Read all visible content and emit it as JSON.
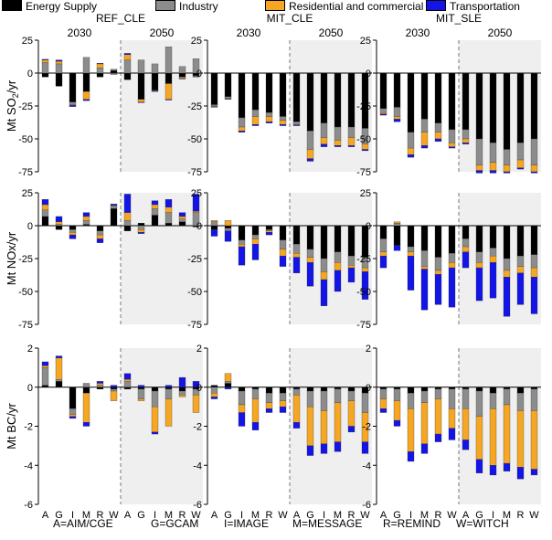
{
  "legend": [
    {
      "label": "Energy Supply",
      "color": "#000000"
    },
    {
      "label": "Industry",
      "color": "#8c8c8c"
    },
    {
      "label": "Residential and commercial",
      "color": "#f5a623"
    },
    {
      "label": "Transportation",
      "color": "#1414e6"
    }
  ],
  "footer": [
    "A=AIM/CGE",
    "G=GCAM",
    "I=IMAGE",
    "M=MESSAGE",
    "R=REMIND",
    "W=WITCH"
  ],
  "chart_data": {
    "type": "bar",
    "stacked": true,
    "panel_titles": [
      "REF_CLE",
      "MIT_CLE",
      "MIT_SLE"
    ],
    "period_labels": [
      "2030",
      "2050"
    ],
    "x_tick_labels": [
      "A",
      "G",
      "I",
      "M",
      "R",
      "W",
      "A",
      "G",
      "I",
      "M",
      "R",
      "W"
    ],
    "sectors": [
      "Energy Supply",
      "Industry",
      "Residential and commercial",
      "Transportation"
    ],
    "colors": [
      "#000000",
      "#8c8c8c",
      "#f5a623",
      "#1414e6"
    ],
    "rows": [
      {
        "ylabel": "Mt SO2/yr",
        "ylim": [
          -75,
          25
        ],
        "yticks": [
          25,
          0,
          -25,
          -50,
          -75
        ],
        "panels": [
          [
            [
              -3,
              8,
              2,
              0.5
            ],
            [
              -10,
              7,
              2,
              1
            ],
            [
              -22,
              -2,
              -0.5,
              -1
            ],
            [
              -14,
              12,
              -6,
              -1
            ],
            [
              -3,
              4,
              3,
              0.5
            ],
            [
              2,
              1,
              -0.5,
              -0.5
            ],
            [
              -5,
              10,
              4,
              1
            ],
            [
              -20,
              10,
              -2,
              -0.5
            ],
            [
              -13,
              7,
              -0.5,
              -0.5
            ],
            [
              -8,
              20,
              -12,
              -0.5
            ],
            [
              -3,
              5,
              -1,
              -0.5
            ],
            [
              -2,
              11,
              -0.5,
              -0.5
            ]
          ],
          [
            [
              -24,
              -1,
              -0.5,
              -0.5
            ],
            [
              -18,
              -1,
              -0.5,
              -0.5
            ],
            [
              -34,
              -7,
              -3,
              -1
            ],
            [
              -28,
              -5,
              -6,
              -1
            ],
            [
              -30,
              -3,
              -4,
              -1
            ],
            [
              -33,
              -3,
              -3,
              -1
            ],
            [
              -37,
              -2,
              -0.5,
              -0.5
            ],
            [
              -44,
              -14,
              -7,
              -2
            ],
            [
              -38,
              -11,
              -5,
              -2
            ],
            [
              -41,
              -10,
              -4,
              -1
            ],
            [
              -41,
              -8,
              -6,
              -1
            ],
            [
              -42,
              -12,
              -4,
              -1
            ]
          ],
          [
            [
              -27,
              -3,
              -1,
              -1
            ],
            [
              -26,
              -7,
              -2,
              -2
            ],
            [
              -45,
              -12,
              -5,
              -2
            ],
            [
              -35,
              -10,
              -10,
              -2
            ],
            [
              -38,
              -7,
              -5,
              -2
            ],
            [
              -43,
              -10,
              -3,
              -1
            ],
            [
              -43,
              -7,
              -3,
              -1
            ],
            [
              -50,
              -20,
              -4,
              -2
            ],
            [
              -53,
              -15,
              -6,
              -2
            ],
            [
              -58,
              -12,
              -5,
              -1
            ],
            [
              -53,
              -13,
              -6,
              -1
            ],
            [
              -50,
              -20,
              -5,
              -1
            ]
          ]
        ]
      },
      {
        "ylabel": "Mt NOx/yr",
        "ylim": [
          -75,
          25
        ],
        "yticks": [
          25,
          0,
          -25,
          -50,
          -75
        ],
        "panels": [
          [
            [
              7,
              5,
              4,
              4
            ],
            [
              -3,
              1,
              2,
              4
            ],
            [
              -3,
              -2,
              -2,
              -3
            ],
            [
              1,
              3,
              3,
              3
            ],
            [
              -4,
              -3,
              -3,
              -3
            ],
            [
              13,
              2,
              0.5,
              1
            ],
            [
              -4,
              4,
              6,
              14
            ],
            [
              2,
              -3,
              -2,
              -1
            ],
            [
              8,
              5,
              3,
              3
            ],
            [
              2,
              8,
              4,
              6
            ],
            [
              3,
              2,
              2,
              3
            ],
            [
              -1,
              10,
              1,
              13
            ]
          ],
          [
            [
              -3,
              3,
              1,
              -5
            ],
            [
              -2,
              -2,
              4,
              -8
            ],
            [
              -11,
              -3,
              -2,
              -14
            ],
            [
              -7,
              -3,
              -4,
              -12
            ],
            [
              -3,
              -1,
              -1,
              -2
            ],
            [
              -11,
              -7,
              -5,
              -8
            ],
            [
              -14,
              -7,
              -3,
              -12
            ],
            [
              -18,
              -6,
              -4,
              -18
            ],
            [
              -25,
              -10,
              -6,
              -20
            ],
            [
              -20,
              -8,
              -6,
              -16
            ],
            [
              -23,
              -7,
              -2,
              -11
            ],
            [
              -24,
              -8,
              -3,
              -21
            ]
          ],
          [
            [
              -10,
              -10,
              -3,
              -9
            ],
            [
              -15,
              2,
              1,
              -4
            ],
            [
              -16,
              -4,
              -3,
              -26
            ],
            [
              -19,
              -12,
              -2,
              -31
            ],
            [
              -24,
              -10,
              -3,
              -23
            ],
            [
              -21,
              -7,
              -4,
              -30
            ],
            [
              -10,
              -6,
              -4,
              -12
            ],
            [
              -20,
              -8,
              -4,
              -25
            ],
            [
              -17,
              -6,
              -5,
              -27
            ],
            [
              -25,
              -9,
              -5,
              -30
            ],
            [
              -23,
              -8,
              -5,
              -24
            ],
            [
              -22,
              -10,
              -7,
              -28
            ]
          ]
        ]
      },
      {
        "ylabel": "Mt BC/yr",
        "ylim": [
          -6,
          2
        ],
        "yticks": [
          2,
          0,
          -2,
          -4,
          -6
        ],
        "panels": [
          [
            [
              0.1,
              0.9,
              0.1,
              0.2
            ],
            [
              0.3,
              0.1,
              1.1,
              0.1
            ],
            [
              -1.1,
              -0.3,
              -0.1,
              -0.1
            ],
            [
              -0.3,
              0.2,
              -1.5,
              -0.2
            ],
            [
              -0.1,
              0.1,
              0.1,
              0.1
            ],
            [
              -0.1,
              -0.1,
              -0.5,
              0.1
            ],
            [
              -0.1,
              0.3,
              0.1,
              0.3
            ],
            [
              -0.1,
              -0.5,
              -0.1,
              0.1
            ],
            [
              -0.2,
              -0.8,
              -1.3,
              -0.1
            ],
            [
              -0.1,
              -0.5,
              -1.4,
              0.1
            ],
            [
              -0.2,
              -0.2,
              -0.1,
              0.5
            ],
            [
              -0.1,
              -0.3,
              -0.9,
              0.3
            ]
          ],
          [
            [
              0.1,
              -0.3,
              -0.2,
              -0.1
            ],
            [
              0.2,
              0.1,
              0.4,
              -0.1
            ],
            [
              -0.2,
              -0.7,
              -0.4,
              -0.7
            ],
            [
              -0.1,
              -0.5,
              -1.2,
              -0.4
            ],
            [
              -0.3,
              -0.5,
              -0.3,
              -0.2
            ],
            [
              -0.3,
              -0.4,
              -0.3,
              -0.3
            ],
            [
              -0.1,
              -0.3,
              -1.4,
              -0.3
            ],
            [
              -0.2,
              -0.8,
              -2.0,
              -0.5
            ],
            [
              -0.2,
              -1.0,
              -1.7,
              -0.5
            ],
            [
              -0.1,
              -0.7,
              -2.0,
              -0.5
            ],
            [
              -0.2,
              -0.5,
              -1.3,
              -0.3
            ],
            [
              -0.3,
              -1.0,
              -1.5,
              -0.6
            ]
          ],
          [
            [
              -0.1,
              -0.5,
              -0.5,
              -0.2
            ],
            [
              -0.1,
              -0.6,
              -1.0,
              -0.3
            ],
            [
              -0.3,
              -0.8,
              -2.2,
              -0.5
            ],
            [
              -0.2,
              -0.6,
              -2.1,
              -0.5
            ],
            [
              -0.1,
              -0.5,
              -1.8,
              -0.4
            ],
            [
              -0.1,
              -1.0,
              -1.0,
              -0.6
            ],
            [
              -0.1,
              -1.0,
              -1.6,
              -0.5
            ],
            [
              -0.2,
              -1.3,
              -2.2,
              -0.7
            ],
            [
              -0.3,
              -0.8,
              -2.9,
              -0.5
            ],
            [
              -0.1,
              -0.8,
              -3.0,
              -0.4
            ],
            [
              -0.3,
              -0.9,
              -2.9,
              -0.6
            ],
            [
              -0.1,
              -1.1,
              -3.0,
              -0.3
            ]
          ]
        ]
      }
    ]
  }
}
